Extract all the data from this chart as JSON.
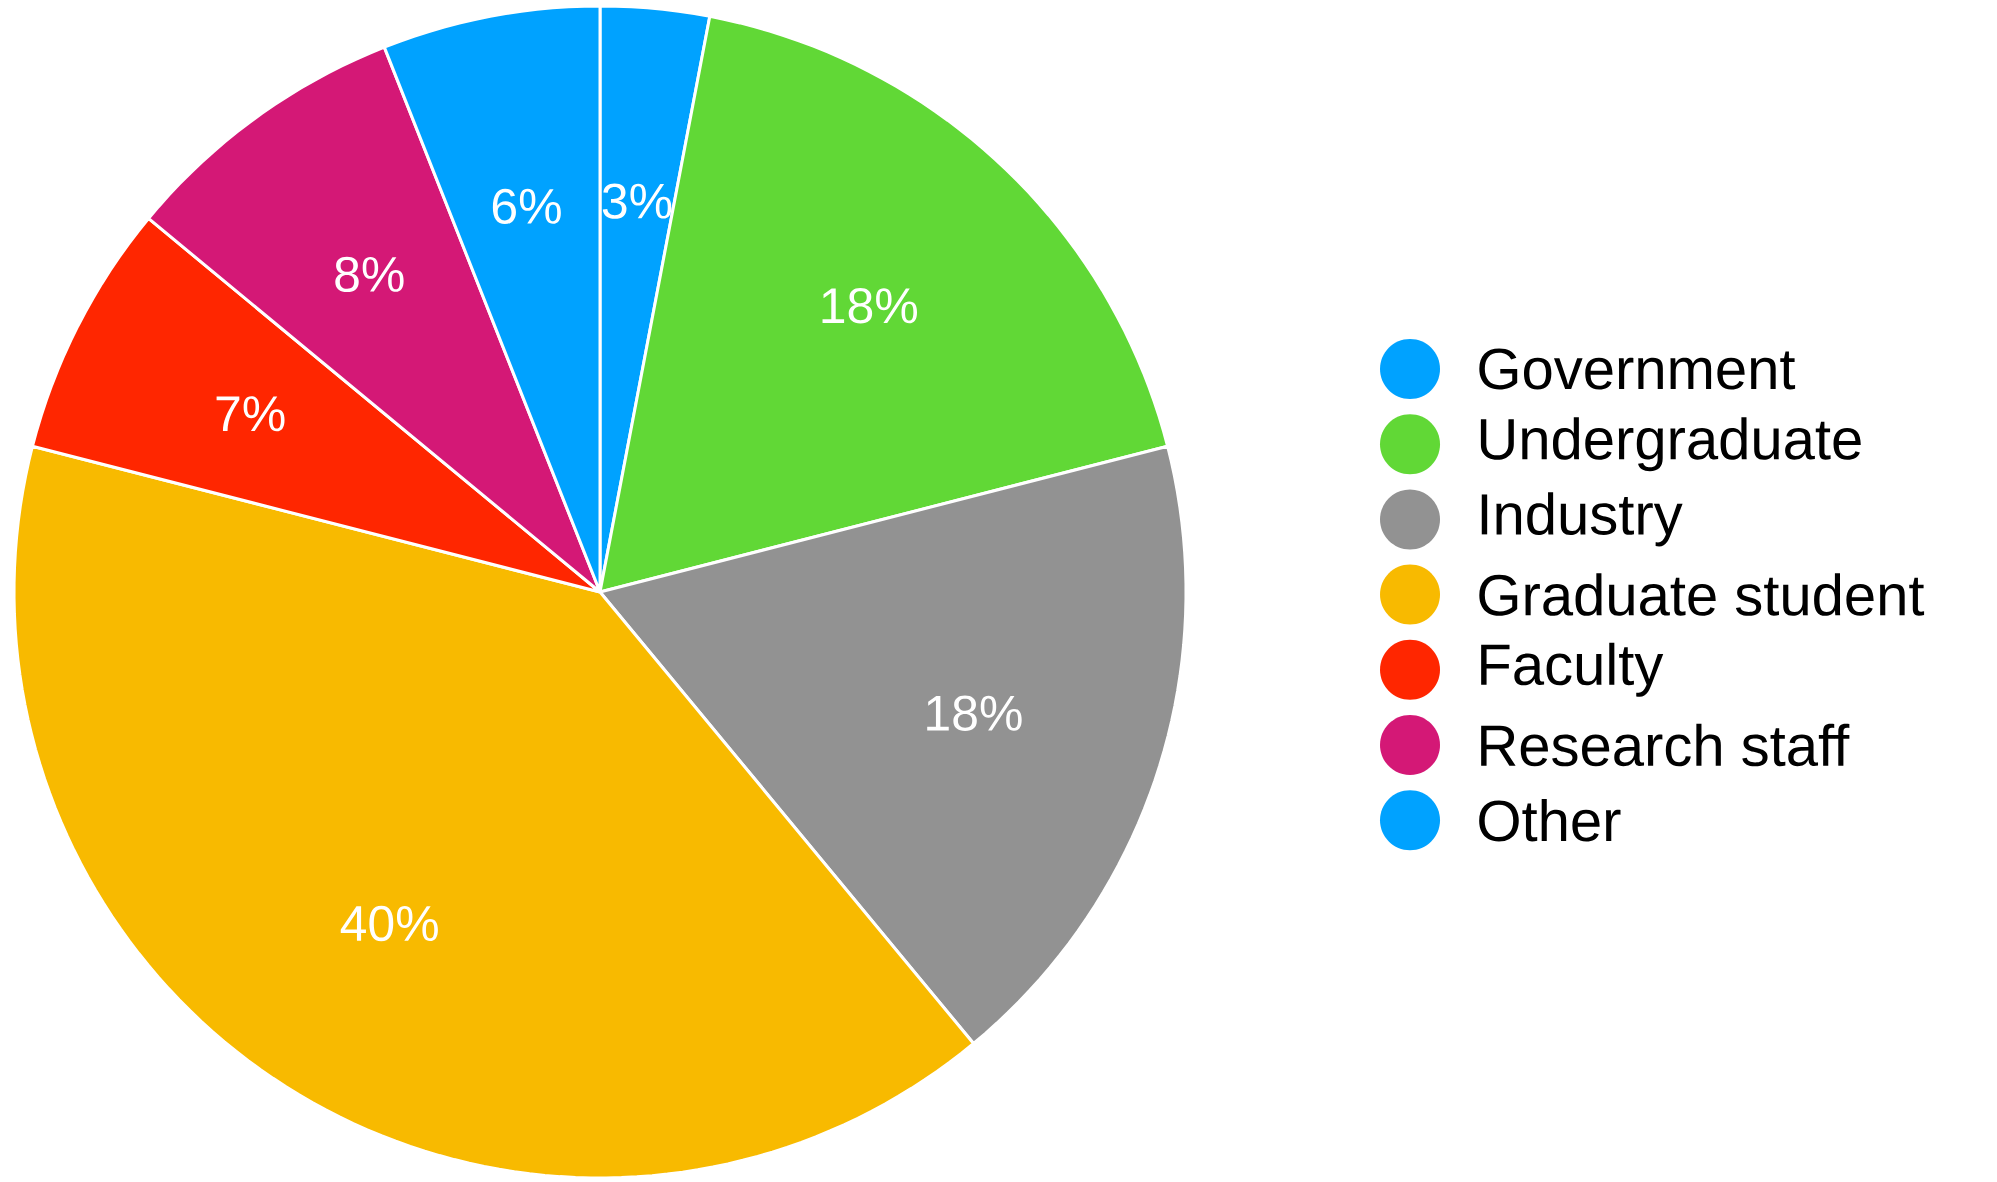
{
  "chart_data": {
    "type": "pie",
    "categories": [
      "Government",
      "Undergraduate",
      "Industry",
      "Graduate student",
      "Faculty",
      "Research staff",
      "Other"
    ],
    "values": [
      3,
      18,
      18,
      40,
      7,
      8,
      6
    ],
    "colors": [
      "#00a2ff",
      "#61d836",
      "#929292",
      "#f8ba00",
      "#ff2600",
      "#d41876",
      "#00a2ff"
    ],
    "value_labels": [
      "3%",
      "18%",
      "18%",
      "40%",
      "7%",
      "8%",
      "6%"
    ],
    "legend": "right"
  }
}
